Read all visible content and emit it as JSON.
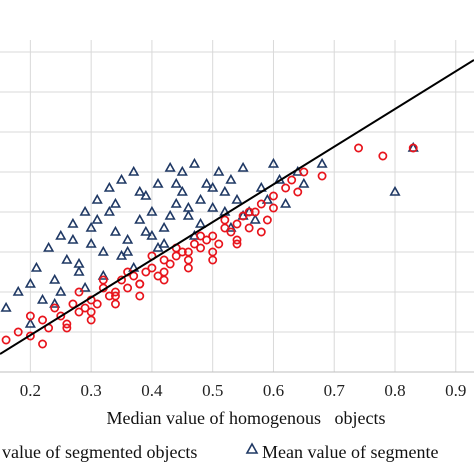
{
  "chart_data": {
    "type": "scatter",
    "title": "",
    "xlabel": "Median value of homogenous   objects",
    "ylabel": "",
    "xlim": [
      0.15,
      0.93
    ],
    "ylim": [
      0.1,
      0.93
    ],
    "x_ticks": [
      "0.2",
      "0.3",
      "0.4",
      "0.5",
      "0.6",
      "0.7",
      "0.8",
      "0.9"
    ],
    "x_tick_values": [
      0.2,
      0.3,
      0.4,
      0.5,
      0.6,
      0.7,
      0.8,
      0.9
    ],
    "y_grid_values": [
      0.2,
      0.3,
      0.4,
      0.5,
      0.6,
      0.7,
      0.8,
      0.9
    ],
    "grid": true,
    "legend_position": "bottom",
    "colors": {
      "median": "#e8141c",
      "mean": "#1f3864",
      "line": "#000000",
      "grid": "#d9d9d9"
    },
    "fit_line": {
      "x": [
        0.15,
        0.93
      ],
      "y": [
        0.145,
        0.88
      ]
    },
    "series": [
      {
        "name": "value of segmented objects",
        "marker": "circle",
        "x": [
          0.16,
          0.18,
          0.2,
          0.22,
          0.23,
          0.25,
          0.26,
          0.27,
          0.28,
          0.29,
          0.3,
          0.31,
          0.32,
          0.33,
          0.34,
          0.35,
          0.36,
          0.37,
          0.38,
          0.39,
          0.4,
          0.41,
          0.42,
          0.43,
          0.44,
          0.45,
          0.46,
          0.47,
          0.48,
          0.49,
          0.5,
          0.51,
          0.52,
          0.53,
          0.54,
          0.55,
          0.56,
          0.57,
          0.58,
          0.59,
          0.6,
          0.62,
          0.63,
          0.65,
          0.68,
          0.74,
          0.78,
          0.83,
          0.2,
          0.24,
          0.28,
          0.32,
          0.36,
          0.4,
          0.44,
          0.48,
          0.52,
          0.56,
          0.6,
          0.64,
          0.3,
          0.34,
          0.38,
          0.42,
          0.46,
          0.5,
          0.54,
          0.58,
          0.22,
          0.26,
          0.3,
          0.34,
          0.38,
          0.42,
          0.46,
          0.5,
          0.54
        ],
        "y": [
          0.18,
          0.2,
          0.19,
          0.23,
          0.21,
          0.24,
          0.22,
          0.27,
          0.25,
          0.26,
          0.28,
          0.27,
          0.31,
          0.29,
          0.3,
          0.33,
          0.31,
          0.34,
          0.32,
          0.35,
          0.36,
          0.34,
          0.38,
          0.37,
          0.39,
          0.4,
          0.38,
          0.42,
          0.41,
          0.43,
          0.44,
          0.42,
          0.46,
          0.45,
          0.47,
          0.49,
          0.46,
          0.5,
          0.52,
          0.48,
          0.54,
          0.56,
          0.58,
          0.6,
          0.59,
          0.66,
          0.64,
          0.66,
          0.24,
          0.26,
          0.3,
          0.33,
          0.35,
          0.39,
          0.41,
          0.44,
          0.48,
          0.5,
          0.51,
          0.55,
          0.23,
          0.27,
          0.29,
          0.33,
          0.36,
          0.4,
          0.42,
          0.45,
          0.17,
          0.21,
          0.25,
          0.29,
          0.32,
          0.35,
          0.4,
          0.38,
          0.43
        ]
      },
      {
        "name": "Mean value of segmente",
        "marker": "triangle",
        "x": [
          0.16,
          0.18,
          0.2,
          0.21,
          0.22,
          0.23,
          0.24,
          0.25,
          0.26,
          0.27,
          0.28,
          0.29,
          0.3,
          0.31,
          0.32,
          0.33,
          0.34,
          0.35,
          0.36,
          0.37,
          0.38,
          0.39,
          0.4,
          0.41,
          0.42,
          0.43,
          0.44,
          0.45,
          0.46,
          0.47,
          0.48,
          0.49,
          0.5,
          0.51,
          0.52,
          0.53,
          0.54,
          0.55,
          0.56,
          0.58,
          0.6,
          0.61,
          0.62,
          0.64,
          0.65,
          0.68,
          0.8,
          0.83,
          0.25,
          0.28,
          0.3,
          0.33,
          0.35,
          0.38,
          0.4,
          0.43,
          0.45,
          0.48,
          0.5,
          0.53,
          0.27,
          0.31,
          0.34,
          0.37,
          0.41,
          0.44,
          0.47,
          0.52,
          0.57,
          0.2,
          0.24,
          0.29,
          0.32,
          0.36,
          0.39,
          0.42,
          0.46,
          0.55,
          0.59
        ],
        "y": [
          0.26,
          0.3,
          0.32,
          0.36,
          0.28,
          0.41,
          0.33,
          0.44,
          0.38,
          0.47,
          0.35,
          0.5,
          0.42,
          0.53,
          0.4,
          0.56,
          0.45,
          0.58,
          0.43,
          0.6,
          0.48,
          0.54,
          0.5,
          0.57,
          0.46,
          0.61,
          0.52,
          0.55,
          0.49,
          0.62,
          0.53,
          0.57,
          0.51,
          0.6,
          0.55,
          0.58,
          0.53,
          0.61,
          0.5,
          0.56,
          0.62,
          0.58,
          0.52,
          0.6,
          0.57,
          0.62,
          0.55,
          0.66,
          0.3,
          0.37,
          0.46,
          0.5,
          0.39,
          0.55,
          0.44,
          0.49,
          0.6,
          0.47,
          0.56,
          0.46,
          0.43,
          0.48,
          0.52,
          0.36,
          0.41,
          0.57,
          0.44,
          0.5,
          0.48,
          0.22,
          0.27,
          0.31,
          0.34,
          0.4,
          0.45,
          0.42,
          0.51,
          0.49,
          0.53
        ]
      }
    ]
  }
}
